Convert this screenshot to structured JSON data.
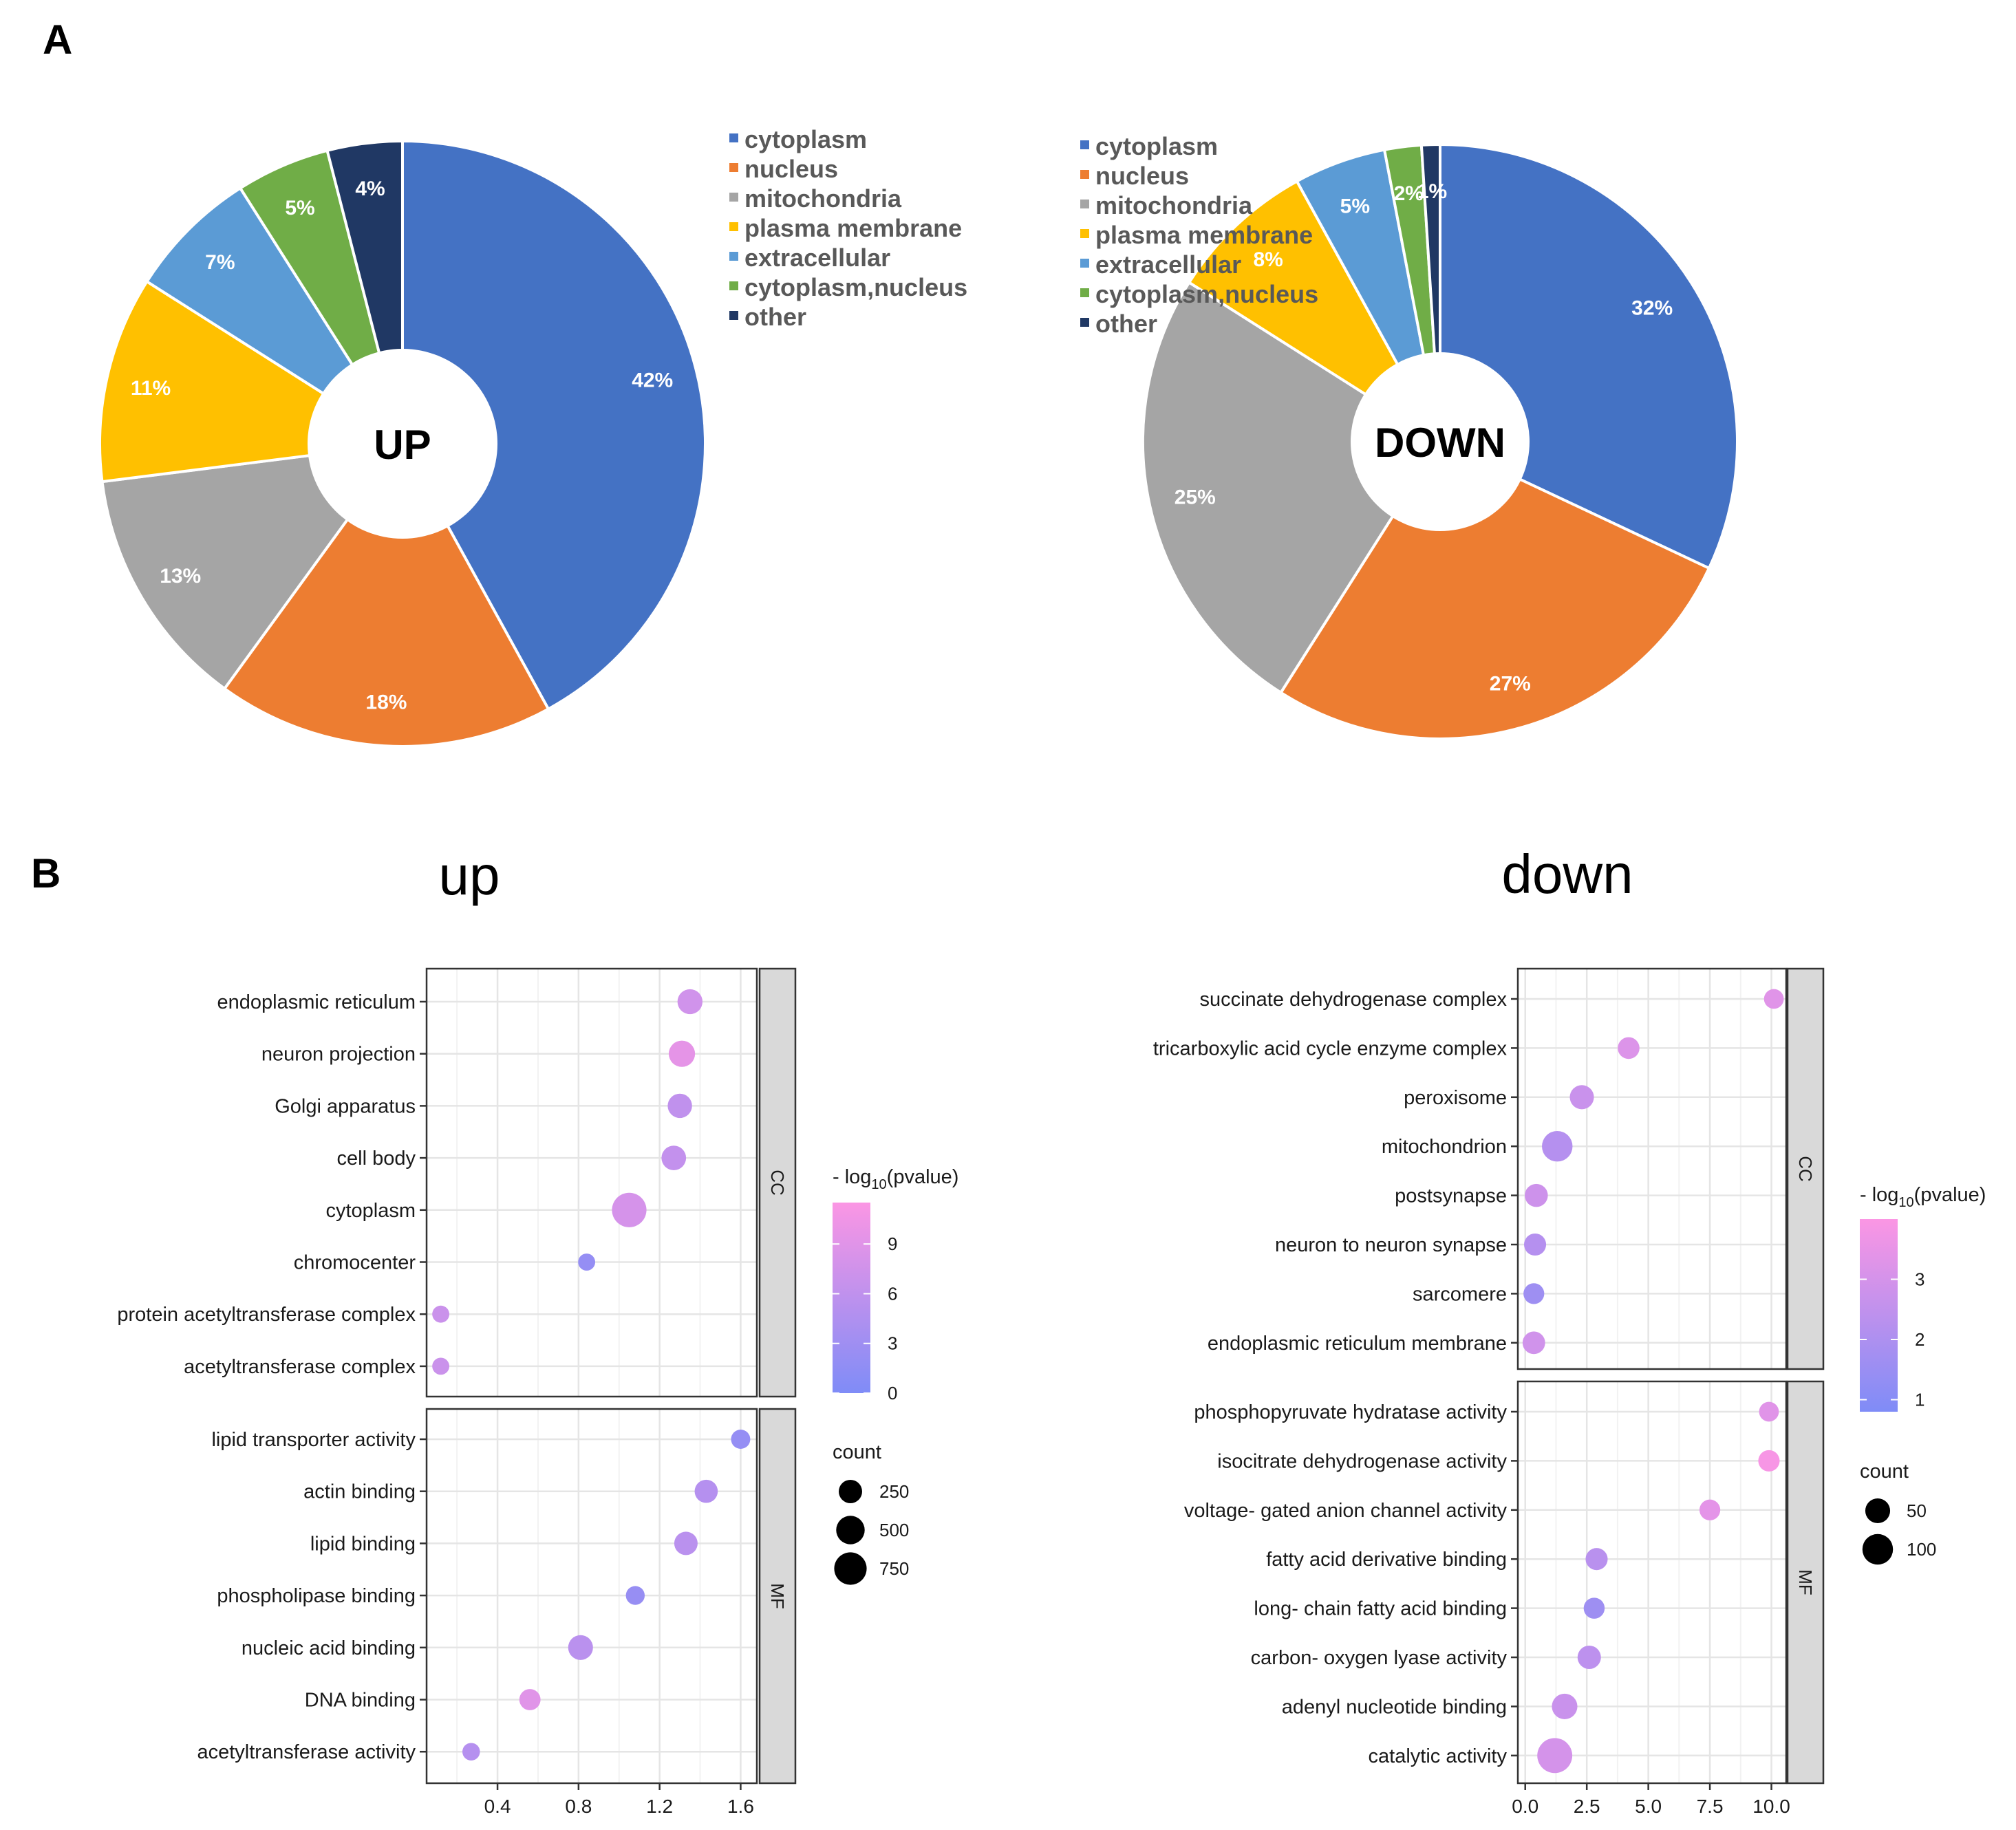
{
  "panels": {
    "A": "A",
    "B": "B"
  },
  "chart_data": [
    {
      "type": "pie",
      "subtype": "donut",
      "center_label": "UP",
      "legend_position": "right",
      "slices": [
        {
          "label": "cytoplasm",
          "value": 42,
          "text": "42%",
          "color": "#4472C4"
        },
        {
          "label": "nucleus",
          "value": 18,
          "text": "18%",
          "color": "#ED7D31"
        },
        {
          "label": "mitochondria",
          "value": 13,
          "text": "13%",
          "color": "#A5A5A5"
        },
        {
          "label": "plasma membrane",
          "value": 11,
          "text": "11%",
          "color": "#FFC000"
        },
        {
          "label": "extracellular",
          "value": 7,
          "text": "7%",
          "color": "#5B9BD5"
        },
        {
          "label": "cytoplasm,nucleus",
          "value": 5,
          "text": "5%",
          "color": "#70AD47"
        },
        {
          "label": "other",
          "value": 4,
          "text": "4%",
          "color": "#203864"
        }
      ]
    },
    {
      "type": "pie",
      "subtype": "donut",
      "center_label": "DOWN",
      "legend_position": "right",
      "slices": [
        {
          "label": "cytoplasm",
          "value": 32,
          "text": "32%",
          "color": "#4472C4"
        },
        {
          "label": "nucleus",
          "value": 27,
          "text": "27%",
          "color": "#ED7D31"
        },
        {
          "label": "mitochondria",
          "value": 25,
          "text": "25%",
          "color": "#A5A5A5"
        },
        {
          "label": "plasma membrane",
          "value": 8,
          "text": "8%",
          "color": "#FFC000"
        },
        {
          "label": "extracellular",
          "value": 5,
          "text": "5%",
          "color": "#5B9BD5"
        },
        {
          "label": "cytoplasm,nucleus",
          "value": 2,
          "text": "2%",
          "color": "#70AD47"
        },
        {
          "label": "other",
          "value": 1,
          "text": "1%",
          "color": "#203864"
        }
      ]
    },
    {
      "type": "scatter",
      "subtype": "dot-plot",
      "title": "up",
      "xlim": [
        0.05,
        1.68
      ],
      "xticks": [
        0.4,
        0.8,
        1.2,
        1.6
      ],
      "xtick_labels": [
        "0.4",
        "0.8",
        "1.2",
        "1.6"
      ],
      "facets": [
        {
          "name": "CC",
          "terms": [
            {
              "label": "endoplasmic reticulum",
              "x": 1.35,
              "count": 320,
              "logp": 7.5
            },
            {
              "label": "neuron projection",
              "x": 1.31,
              "count": 380,
              "logp": 9.5
            },
            {
              "label": "Golgi apparatus",
              "x": 1.3,
              "count": 290,
              "logp": 6.0
            },
            {
              "label": "cell body",
              "x": 1.27,
              "count": 300,
              "logp": 6.3
            },
            {
              "label": "cytoplasm",
              "x": 1.05,
              "count": 900,
              "logp": 8.0
            },
            {
              "label": "chromocenter",
              "x": 0.84,
              "count": 60,
              "logp": 2.0
            },
            {
              "label": "protein acetyltransferase complex",
              "x": 0.12,
              "count": 60,
              "logp": 7.0
            },
            {
              "label": "acetyltransferase complex",
              "x": 0.12,
              "count": 60,
              "logp": 7.0
            }
          ]
        },
        {
          "name": "MF",
          "terms": [
            {
              "label": "lipid transporter activity",
              "x": 1.6,
              "count": 110,
              "logp": 2.0
            },
            {
              "label": "actin binding",
              "x": 1.43,
              "count": 240,
              "logp": 5.0
            },
            {
              "label": "lipid binding",
              "x": 1.33,
              "count": 250,
              "logp": 5.5
            },
            {
              "label": "phospholipase binding",
              "x": 1.08,
              "count": 100,
              "logp": 2.2
            },
            {
              "label": "nucleic acid binding",
              "x": 0.81,
              "count": 310,
              "logp": 5.5
            },
            {
              "label": "DNA binding",
              "x": 0.56,
              "count": 170,
              "logp": 9.0
            },
            {
              "label": "acetyltransferase activity",
              "x": 0.27,
              "count": 70,
              "logp": 5.0
            }
          ]
        }
      ],
      "color_legend": {
        "title_prefix": "- log",
        "title_sub": "10",
        "title_suffix": "(pvalue)",
        "range": [
          0,
          11.5
        ],
        "ticks": [
          0,
          3,
          6,
          9
        ],
        "tick_labels": [
          "0",
          "3",
          "6",
          "9"
        ]
      },
      "size_legend": {
        "title": "count",
        "values": [
          250,
          500,
          750
        ],
        "labels": [
          "250",
          "500",
          "750"
        ]
      }
    },
    {
      "type": "scatter",
      "subtype": "dot-plot",
      "title": "down",
      "xlim": [
        -0.3,
        10.6
      ],
      "xticks": [
        0.0,
        2.5,
        5.0,
        7.5,
        10.0
      ],
      "xtick_labels": [
        "0.0",
        "2.5",
        "5.0",
        "7.5",
        "10.0"
      ],
      "facets": [
        {
          "name": "CC",
          "terms": [
            {
              "label": "succinate dehydrogenase complex",
              "x": 10.1,
              "count": 20,
              "logp": 3.3
            },
            {
              "label": "tricarboxylic acid cycle enzyme complex",
              "x": 4.2,
              "count": 30,
              "logp": 3.2
            },
            {
              "label": "peroxisome",
              "x": 2.3,
              "count": 45,
              "logp": 2.7
            },
            {
              "label": "mitochondrion",
              "x": 1.3,
              "count": 100,
              "logp": 2.2
            },
            {
              "label": "postsynapse",
              "x": 0.45,
              "count": 38,
              "logp": 2.8
            },
            {
              "label": "neuron to neuron synapse",
              "x": 0.4,
              "count": 32,
              "logp": 2.2
            },
            {
              "label": "sarcomere",
              "x": 0.35,
              "count": 25,
              "logp": 1.6
            },
            {
              "label": "endoplasmic reticulum membrane",
              "x": 0.35,
              "count": 35,
              "logp": 2.9
            }
          ]
        },
        {
          "name": "MF",
          "terms": [
            {
              "label": "phosphopyruvate hydratase activity",
              "x": 9.9,
              "count": 20,
              "logp": 3.3
            },
            {
              "label": "isocitrate dehydrogenase activity",
              "x": 9.9,
              "count": 28,
              "logp": 3.9
            },
            {
              "label": "voltage- gated anion channel activity",
              "x": 7.5,
              "count": 25,
              "logp": 3.4
            },
            {
              "label": "fatty acid derivative binding",
              "x": 2.9,
              "count": 32,
              "logp": 2.3
            },
            {
              "label": "long- chain fatty acid binding",
              "x": 2.8,
              "count": 26,
              "logp": 1.6
            },
            {
              "label": "carbon- oxygen lyase activity",
              "x": 2.6,
              "count": 40,
              "logp": 2.4
            },
            {
              "label": "adenyl nucleotide binding",
              "x": 1.6,
              "count": 55,
              "logp": 2.7
            },
            {
              "label": "catalytic activity",
              "x": 1.2,
              "count": 150,
              "logp": 3.0
            }
          ]
        }
      ],
      "color_legend": {
        "title_prefix": "- log",
        "title_sub": "10",
        "title_suffix": "(pvalue)",
        "range": [
          0.8,
          4.0
        ],
        "ticks": [
          1,
          2,
          3
        ],
        "tick_labels": [
          "1",
          "2",
          "3"
        ]
      },
      "size_legend": {
        "title": "count",
        "values": [
          50,
          100
        ],
        "labels": [
          "50",
          "100"
        ]
      }
    }
  ]
}
